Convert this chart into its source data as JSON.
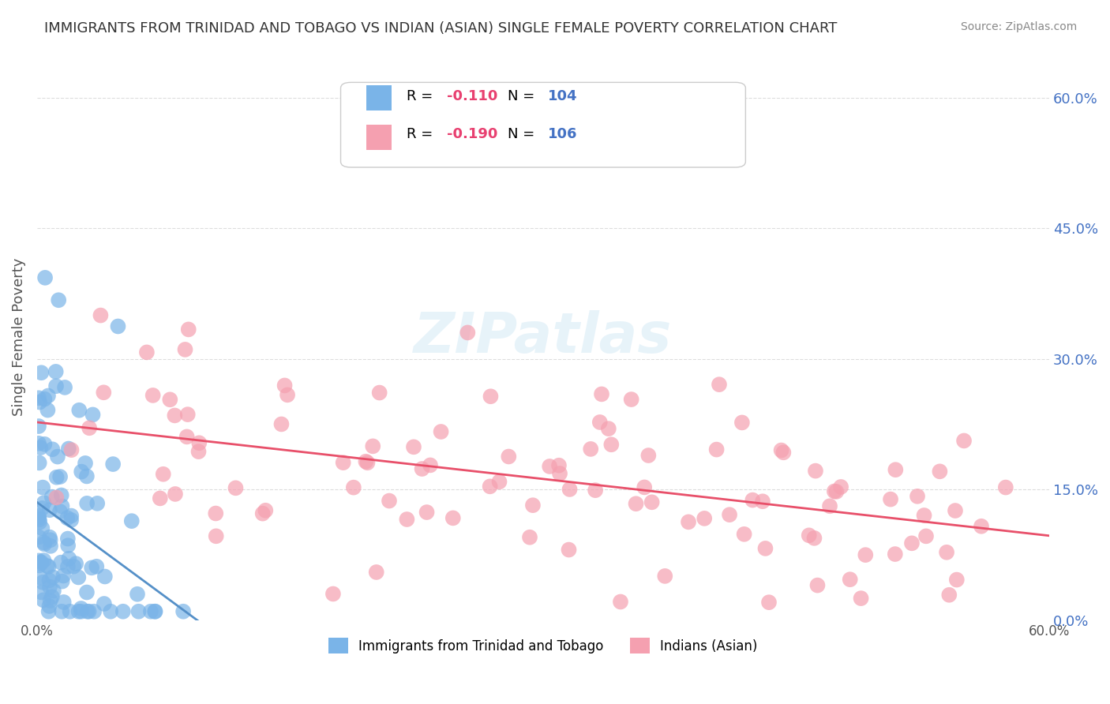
{
  "title": "IMMIGRANTS FROM TRINIDAD AND TOBAGO VS INDIAN (ASIAN) SINGLE FEMALE POVERTY CORRELATION CHART",
  "source": "Source: ZipAtlas.com",
  "ylabel": "Single Female Poverty",
  "xlabel": "",
  "xlim": [
    0.0,
    0.6
  ],
  "ylim": [
    0.0,
    0.65
  ],
  "right_ytick_labels": [
    "0.0%",
    "15.0%",
    "30.0%",
    "45.0%",
    "60.0%"
  ],
  "right_ytick_values": [
    0.0,
    0.15,
    0.3,
    0.45,
    0.6
  ],
  "xtick_labels": [
    "0.0%",
    "",
    "",
    "",
    "",
    "",
    "60.0%"
  ],
  "xtick_values": [
    0.0,
    0.1,
    0.2,
    0.3,
    0.4,
    0.5,
    0.6
  ],
  "series1_color": "#7ab4e8",
  "series2_color": "#f5a0b0",
  "series1_line_color": "#5590c8",
  "series2_line_color": "#e8506a",
  "dashed_line_color": "#aaaaaa",
  "R1": -0.11,
  "N1": 104,
  "R2": -0.19,
  "N2": 106,
  "legend_label1": "Immigrants from Trinidad and Tobago",
  "legend_label2": "Indians (Asian)",
  "watermark": "ZIPatlas",
  "background_color": "#ffffff",
  "grid_color": "#dddddd",
  "title_color": "#333333",
  "axis_label_color": "#555555",
  "right_tick_color": "#4472c4",
  "stat_color": "#4472c4",
  "stat_neg_color": "#e84070"
}
